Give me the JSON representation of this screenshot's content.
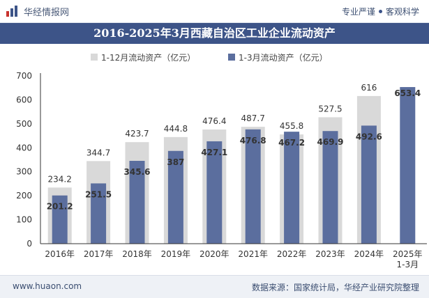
{
  "header": {
    "brand": "华经情报网",
    "tagline_left": "专业严谨",
    "tagline_right": "客观科学"
  },
  "title": "2016-2025年3月西藏自治区工业企业流动资产",
  "colors": {
    "full_year": "#d9d9d9",
    "q1": "#5b6e9e",
    "title_bg": "#3d5488"
  },
  "chart_data": {
    "type": "bar",
    "categories": [
      "2016年",
      "2017年",
      "2018年",
      "2019年",
      "2020年",
      "2021年",
      "2022年",
      "2023年",
      "2024年",
      "2025年\n1-3月"
    ],
    "series": [
      {
        "name": "1-12月流动资产（亿元）",
        "values": [
          234.2,
          344.7,
          423.7,
          444.8,
          476.4,
          487.7,
          455.8,
          527.5,
          616,
          null
        ]
      },
      {
        "name": "1-3月流动资产（亿元）",
        "values": [
          201.2,
          251.5,
          345.6,
          387,
          427.1,
          476.8,
          467.2,
          469.9,
          492.6,
          653.4
        ]
      }
    ],
    "ylim": [
      0,
      700
    ],
    "yticks": [
      0,
      100,
      200,
      300,
      400,
      500,
      600,
      700
    ],
    "legend_position": "top-center",
    "grid": false
  },
  "footer": {
    "website": "www.huaon.com",
    "source": "数据来源：国家统计局，华经产业研究院整理"
  }
}
